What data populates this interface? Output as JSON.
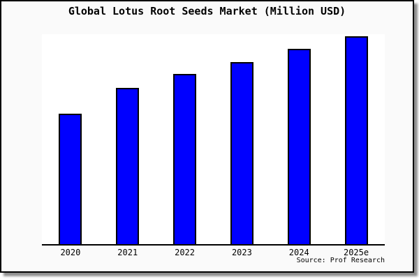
{
  "chart_data": {
    "type": "bar",
    "title": "Global Lotus Root Seeds Market (Million USD)",
    "categories": [
      "2020",
      "2021",
      "2022",
      "2023",
      "2024",
      "2025e"
    ],
    "values": [
      62.9,
      75.3,
      81.9,
      87.6,
      94.0,
      100.0
    ],
    "values_note": "no y-axis shown; values estimated from bar heights, indexed to 2025e = 100",
    "xlabel": "",
    "ylabel": "",
    "ylim": [
      0,
      101
    ],
    "grid": false,
    "legend": null,
    "bar_color": "#0000ff",
    "bar_border_color": "#000000",
    "plot_background": "#ffffff",
    "figure_background": "#fafafa",
    "frame_color": "#000000"
  },
  "footer": {
    "source_label": "Source: Prof Research"
  }
}
